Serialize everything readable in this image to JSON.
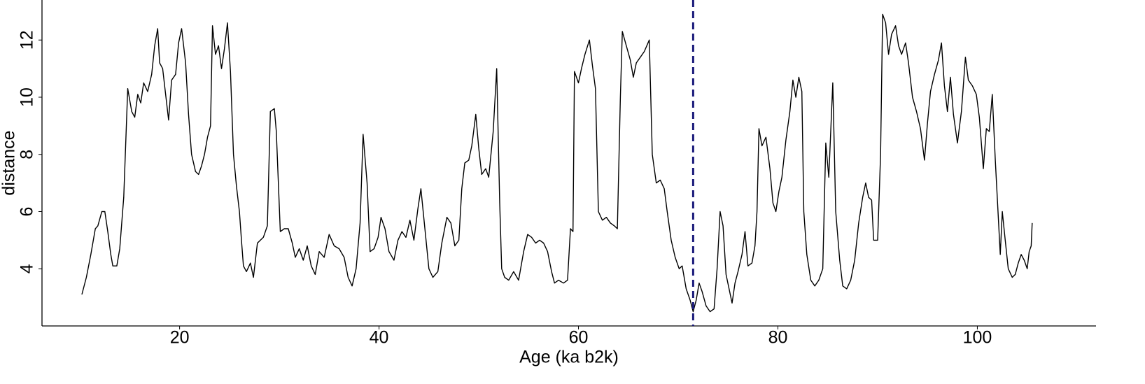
{
  "chart_data": {
    "type": "line",
    "xlabel": "Age (ka b2k)",
    "ylabel": "distance",
    "xlim": [
      6.2,
      111.9
    ],
    "ylim": [
      2.0,
      13.4
    ],
    "xticks": [
      20,
      40,
      60,
      80,
      100
    ],
    "yticks": [
      4,
      6,
      8,
      10,
      12
    ],
    "color": "#000000",
    "vline": 71.5,
    "vline_color": "#1a1a7a",
    "x": [
      10.2,
      10.65,
      11.1,
      11.55,
      11.8,
      12.2,
      12.5,
      12.8,
      13.1,
      13.3,
      13.7,
      14.0,
      14.4,
      14.8,
      15.2,
      15.5,
      15.8,
      16.1,
      16.4,
      16.8,
      17.2,
      17.5,
      17.8,
      18.0,
      18.3,
      18.9,
      19.2,
      19.6,
      19.9,
      20.2,
      20.6,
      20.9,
      21.2,
      21.6,
      21.9,
      22.2,
      22.5,
      22.8,
      23.1,
      23.3,
      23.6,
      23.9,
      24.2,
      24.5,
      24.8,
      25.1,
      25.4,
      25.7,
      26.0,
      26.2,
      26.4,
      26.7,
      27.1,
      27.4,
      27.8,
      28.4,
      28.8,
      29.1,
      29.5,
      29.7,
      30.1,
      30.5,
      30.9,
      31.3,
      31.6,
      32.0,
      32.4,
      32.8,
      33.2,
      33.6,
      34.0,
      34.5,
      35.0,
      35.5,
      36.0,
      36.5,
      36.9,
      37.3,
      37.7,
      38.1,
      38.4,
      38.8,
      39.1,
      39.5,
      39.9,
      40.2,
      40.6,
      41.0,
      41.5,
      41.9,
      42.3,
      42.7,
      43.1,
      43.5,
      43.9,
      44.2,
      44.6,
      45.0,
      45.4,
      45.9,
      46.3,
      46.8,
      47.2,
      47.6,
      48.0,
      48.3,
      48.6,
      49.0,
      49.3,
      49.7,
      50.0,
      50.3,
      50.7,
      51.0,
      51.45,
      51.8,
      52.1,
      52.3,
      52.6,
      53.0,
      53.5,
      54.0,
      54.5,
      54.9,
      55.3,
      55.7,
      56.1,
      56.5,
      56.9,
      57.3,
      57.6,
      58.0,
      58.5,
      58.9,
      59.2,
      59.45,
      59.6,
      60.0,
      60.3,
      60.65,
      61.1,
      61.4,
      61.7,
      62.0,
      62.4,
      62.8,
      63.2,
      63.6,
      63.9,
      64.2,
      64.4,
      64.8,
      65.2,
      65.5,
      65.8,
      66.2,
      66.6,
      67.1,
      67.4,
      67.8,
      68.2,
      68.6,
      68.9,
      69.3,
      69.7,
      70.1,
      70.4,
      70.8,
      71.2,
      71.5,
      71.8,
      72.1,
      72.4,
      72.8,
      73.2,
      73.6,
      73.9,
      74.2,
      74.5,
      74.8,
      75.1,
      75.4,
      75.7,
      76.0,
      76.4,
      76.7,
      77.0,
      77.4,
      77.7,
      77.9,
      78.1,
      78.4,
      78.8,
      79.2,
      79.5,
      79.8,
      80.1,
      80.4,
      80.8,
      81.2,
      81.5,
      81.8,
      82.1,
      82.4,
      82.6,
      82.9,
      83.3,
      83.7,
      84.1,
      84.5,
      84.8,
      85.1,
      85.5,
      85.8,
      86.2,
      86.5,
      86.9,
      87.3,
      87.7,
      88.1,
      88.5,
      88.8,
      89.1,
      89.4,
      89.6,
      90.0,
      90.3,
      90.5,
      90.8,
      91.1,
      91.4,
      91.8,
      92.1,
      92.4,
      92.8,
      93.1,
      93.5,
      93.9,
      94.3,
      94.7,
      95.0,
      95.3,
      95.7,
      96.1,
      96.4,
      96.7,
      97.0,
      97.3,
      97.6,
      98.0,
      98.4,
      98.8,
      99.1,
      99.5,
      99.9,
      100.2,
      100.6,
      100.9,
      101.2,
      101.5,
      101.8,
      102.3,
      102.5,
      102.8,
      103.1,
      103.5,
      103.8,
      104.1,
      104.4,
      104.7,
      105.0,
      105.2,
      105.4,
      105.5
    ],
    "values": [
      3.1,
      3.7,
      4.5,
      5.4,
      5.5,
      6.0,
      6.0,
      5.3,
      4.5,
      4.1,
      4.1,
      4.7,
      6.5,
      10.3,
      9.5,
      9.3,
      10.1,
      9.8,
      10.5,
      10.2,
      10.8,
      11.8,
      12.4,
      11.2,
      11.0,
      9.2,
      10.6,
      10.8,
      11.9,
      12.4,
      11.2,
      9.4,
      8.0,
      7.4,
      7.3,
      7.6,
      8.0,
      8.6,
      9.0,
      12.5,
      11.5,
      11.8,
      11.0,
      11.7,
      12.6,
      10.9,
      8.0,
      6.9,
      6.0,
      5.0,
      4.1,
      3.9,
      4.2,
      3.7,
      4.9,
      5.1,
      5.5,
      9.5,
      9.6,
      8.8,
      5.3,
      5.4,
      5.4,
      4.9,
      4.4,
      4.7,
      4.3,
      4.8,
      4.1,
      3.8,
      4.6,
      4.4,
      5.2,
      4.8,
      4.7,
      4.4,
      3.7,
      3.4,
      4.0,
      5.6,
      8.7,
      7.0,
      4.6,
      4.7,
      5.1,
      5.8,
      5.4,
      4.6,
      4.3,
      5.0,
      5.3,
      5.1,
      5.7,
      5.0,
      6.1,
      6.8,
      5.4,
      4.0,
      3.7,
      3.9,
      4.9,
      5.8,
      5.6,
      4.8,
      5.0,
      6.8,
      7.7,
      7.8,
      8.3,
      9.4,
      8.2,
      7.3,
      7.5,
      7.2,
      8.8,
      11.0,
      6.3,
      4.0,
      3.7,
      3.6,
      3.9,
      3.6,
      4.6,
      5.2,
      5.1,
      4.9,
      5.0,
      4.9,
      4.6,
      3.9,
      3.5,
      3.6,
      3.5,
      3.6,
      5.4,
      5.3,
      10.9,
      10.5,
      11.0,
      11.5,
      12.0,
      11.1,
      10.3,
      6.0,
      5.7,
      5.8,
      5.6,
      5.5,
      5.4,
      10.0,
      12.3,
      11.8,
      11.3,
      10.7,
      11.2,
      11.4,
      11.6,
      12.0,
      8.0,
      7.0,
      7.1,
      6.8,
      6.0,
      5.0,
      4.4,
      4.0,
      4.1,
      3.3,
      2.9,
      2.5,
      2.9,
      3.5,
      3.2,
      2.7,
      2.5,
      2.6,
      4.0,
      6.0,
      5.5,
      3.8,
      3.3,
      2.8,
      3.5,
      3.9,
      4.5,
      5.3,
      4.1,
      4.2,
      4.8,
      6.0,
      8.9,
      8.3,
      8.6,
      7.5,
      6.3,
      6.0,
      6.7,
      7.2,
      8.5,
      9.5,
      10.6,
      10.0,
      10.7,
      10.2,
      6.0,
      4.5,
      3.6,
      3.4,
      3.6,
      4.0,
      8.4,
      7.2,
      10.5,
      6.0,
      4.3,
      3.4,
      3.3,
      3.6,
      4.3,
      5.6,
      6.5,
      7.0,
      6.5,
      6.4,
      5.0,
      5.0,
      8.0,
      12.9,
      12.6,
      11.5,
      12.2,
      12.5,
      11.8,
      11.5,
      11.9,
      11.2,
      10.0,
      9.5,
      8.9,
      7.8,
      9.1,
      10.2,
      10.8,
      11.3,
      11.9,
      10.4,
      9.5,
      10.7,
      9.4,
      8.4,
      9.5,
      11.4,
      10.6,
      10.4,
      10.1,
      9.3,
      7.5,
      8.9,
      8.8,
      10.1,
      7.8,
      4.5,
      6.0,
      5.0,
      4.0,
      3.7,
      3.8,
      4.2,
      4.5,
      4.3,
      4.0,
      4.6,
      4.8,
      5.6
    ]
  }
}
